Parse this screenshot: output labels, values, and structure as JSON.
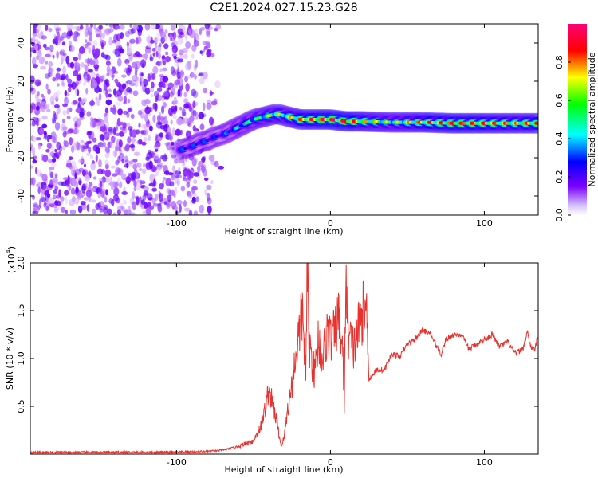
{
  "figure_title": "C2E1.2024.027.15.23.G28",
  "chart_data": [
    {
      "type": "heatmap",
      "title": "C2E1.2024.027.15.23.G28",
      "xlabel": "Height of straight line (km)",
      "ylabel": "Frequency (Hz)",
      "xlim": [
        -195,
        135
      ],
      "ylim": [
        -50,
        50
      ],
      "x_ticks": [
        -100,
        0,
        100
      ],
      "x_tick_labels": [
        "-100",
        "0",
        "100"
      ],
      "y_ticks": [
        -40,
        -20,
        0,
        20,
        40
      ],
      "y_tick_labels": [
        "-40",
        "-20",
        "0",
        "20",
        "40"
      ],
      "colorbar": {
        "label": "Normalized spectral amplitude",
        "range": [
          0,
          1
        ],
        "ticks": [
          0.0,
          0.2,
          0.4,
          0.6,
          0.8
        ],
        "tick_labels": [
          "0.0",
          "0.2",
          "0.4",
          "0.6",
          "0.8"
        ],
        "colors": [
          "#ffffff",
          "#7b00ff",
          "#0000ff",
          "#00ffff",
          "#00ff00",
          "#ffff00",
          "#ff0000",
          "#ff0077"
        ]
      },
      "noise_region": {
        "x_range": [
          -195,
          -70
        ],
        "typical_amplitude": 0.1
      },
      "ridge": {
        "x": [
          -98,
          -90,
          -85,
          -80,
          -75,
          -70,
          -65,
          -60,
          -55,
          -50,
          -45,
          -40,
          -35,
          -30,
          -25,
          -20,
          -15,
          -10,
          -5,
          0,
          10,
          20,
          40,
          60,
          80,
          100,
          120,
          135
        ],
        "frequency": [
          -16,
          -14,
          -12,
          -11,
          -9,
          -8,
          -6,
          -4,
          -2,
          0,
          1,
          2,
          3,
          2,
          1,
          0,
          0,
          0,
          0,
          0,
          -1,
          -1,
          -1.5,
          -1.5,
          -2,
          -2,
          -2,
          -2
        ],
        "amplitude": [
          0.3,
          0.3,
          0.3,
          0.3,
          0.28,
          0.3,
          0.35,
          0.4,
          0.48,
          0.52,
          0.55,
          0.62,
          0.65,
          0.62,
          0.7,
          0.78,
          0.82,
          0.85,
          0.9,
          0.95,
          0.92,
          0.72,
          0.6,
          0.78,
          0.85,
          0.8,
          0.72,
          0.8
        ]
      }
    },
    {
      "type": "line",
      "xlabel": "Height of straight line (km)",
      "ylabel": "SNR (10 * v/v)",
      "y_scale_label": "(x10",
      "y_scale_exponent": "4",
      "y_scale_suffix": ")",
      "xlim": [
        -195,
        135
      ],
      "ylim": [
        0,
        2.0
      ],
      "x_ticks": [
        -100,
        0,
        100
      ],
      "x_tick_labels": [
        "-100",
        "0",
        "100"
      ],
      "y_ticks": [
        0.5,
        1.0,
        1.5,
        2.0
      ],
      "y_tick_labels": [
        "0.5",
        "1.0",
        "1.5",
        "2.0"
      ],
      "color": "#e8322e",
      "x": [
        -195,
        -150,
        -100,
        -80,
        -70,
        -60,
        -50,
        -45,
        -42,
        -40,
        -38,
        -35,
        -32,
        -30,
        -28,
        -25,
        -22,
        -20,
        -18,
        -16,
        -15,
        -14,
        -12,
        -10,
        -8,
        -5,
        -2,
        0,
        3,
        5,
        8,
        9,
        10,
        11,
        12,
        15,
        18,
        20,
        22,
        24,
        25,
        27,
        30,
        35,
        40,
        45,
        50,
        55,
        60,
        65,
        70,
        72,
        75,
        80,
        85,
        90,
        95,
        100,
        105,
        110,
        115,
        120,
        125,
        128,
        130,
        133,
        135
      ],
      "snr": [
        0.02,
        0.02,
        0.02,
        0.03,
        0.04,
        0.08,
        0.14,
        0.3,
        0.5,
        0.68,
        0.55,
        0.35,
        0.08,
        0.18,
        0.45,
        0.72,
        1.1,
        1.3,
        1.5,
        0.8,
        2.0,
        1.2,
        0.95,
        0.85,
        1.2,
        1.0,
        1.3,
        1.2,
        1.25,
        1.45,
        1.1,
        0.5,
        1.92,
        1.3,
        1.25,
        1.1,
        1.3,
        1.45,
        1.5,
        1.48,
        0.78,
        0.82,
        0.88,
        0.88,
        1.05,
        1.02,
        1.15,
        1.2,
        1.3,
        1.25,
        1.1,
        1.05,
        1.2,
        1.25,
        1.25,
        1.1,
        1.15,
        1.2,
        1.25,
        1.12,
        1.18,
        1.05,
        1.1,
        1.28,
        1.12,
        1.1,
        1.25
      ]
    }
  ]
}
